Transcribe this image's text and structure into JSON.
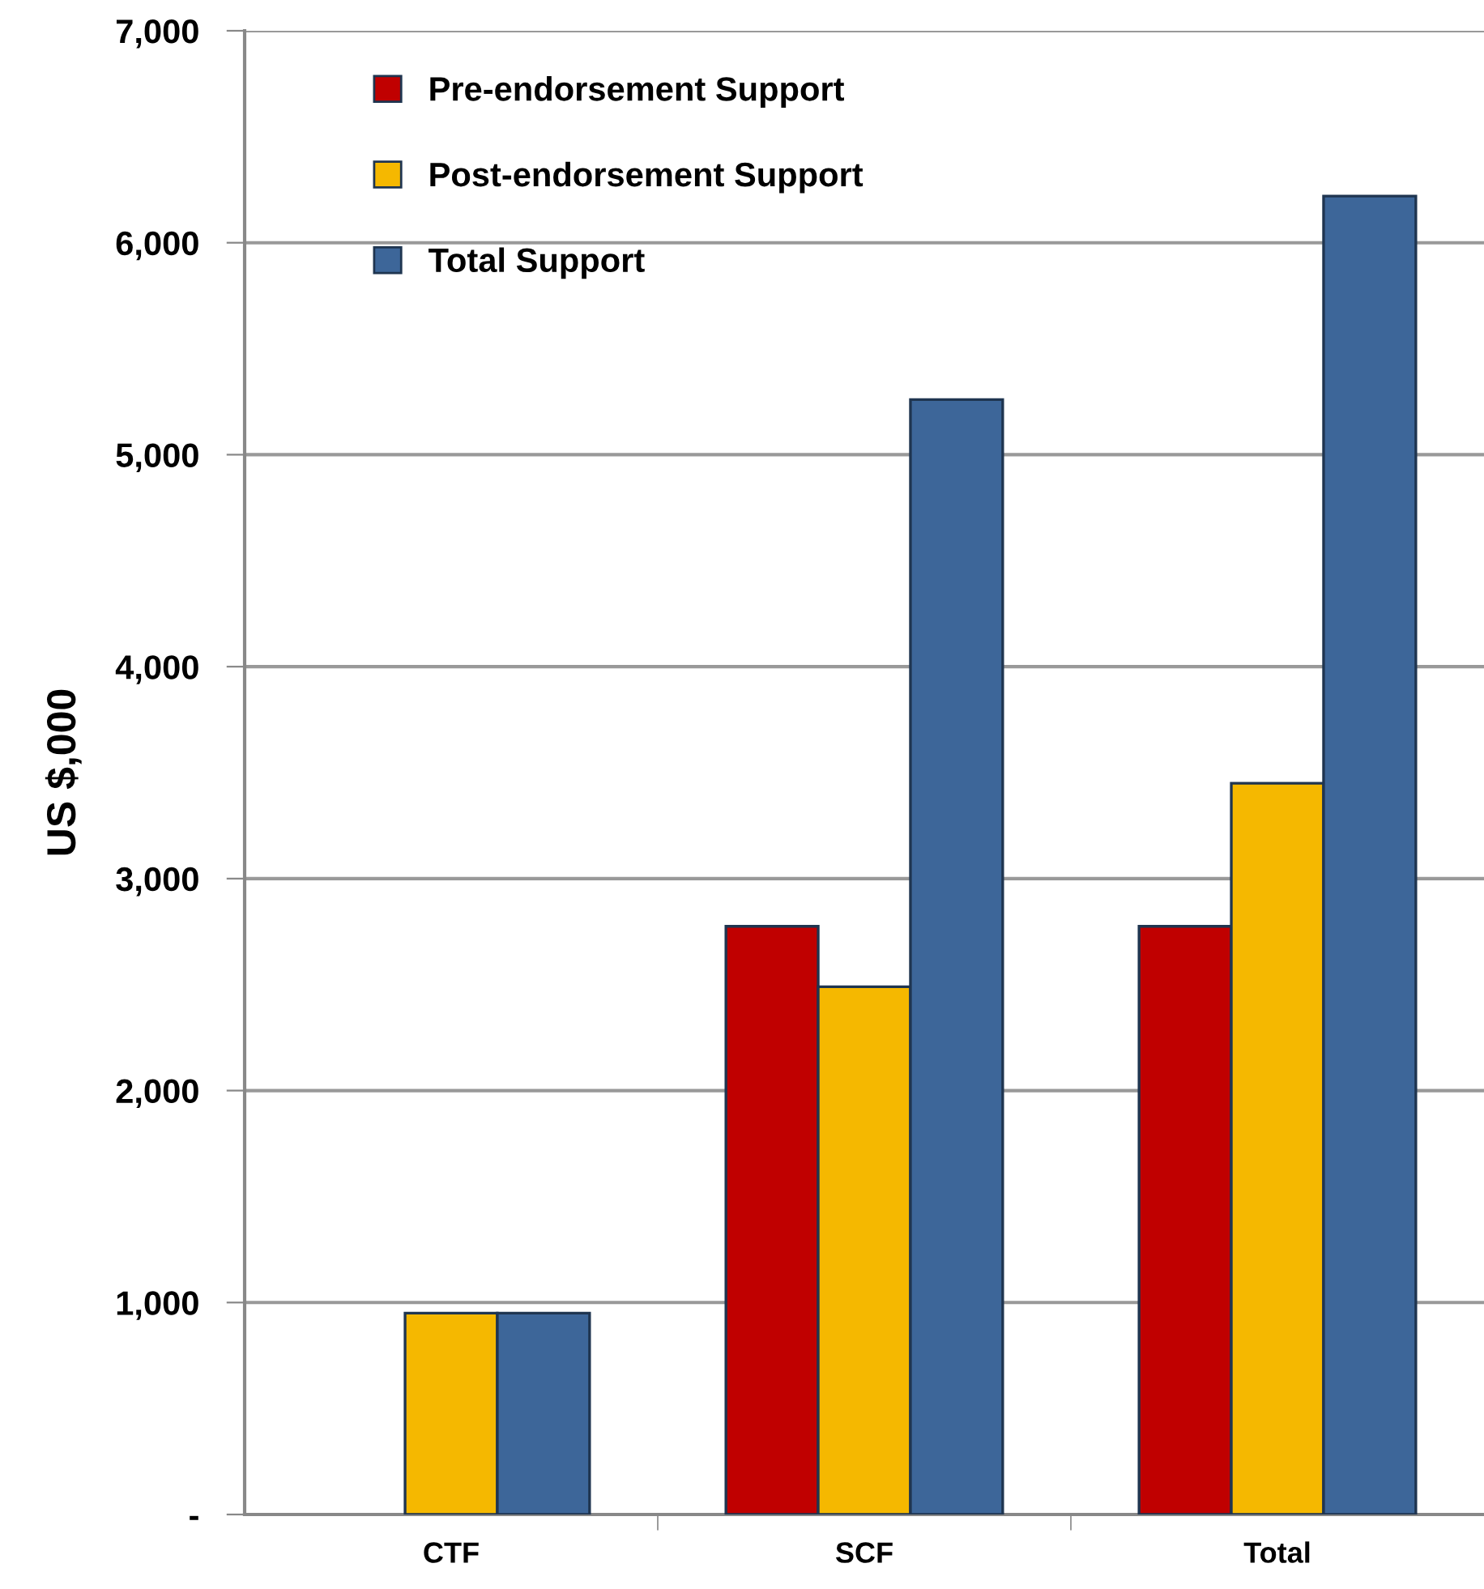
{
  "chart_data": {
    "type": "bar",
    "ylabel": "US $,000",
    "categories": [
      "CTF",
      "SCF",
      "Total"
    ],
    "series": [
      {
        "name": "Pre-endorsement Support",
        "color": "#c00000",
        "values": [
          null,
          2775,
          2775
        ]
      },
      {
        "name": "Post-endorsement Support",
        "color": "#f5b800",
        "values": [
          950,
          2490,
          3450
        ]
      },
      {
        "name": "Total Support",
        "color": "#3d6699",
        "values": [
          950,
          5260,
          6220
        ]
      }
    ],
    "ylim": [
      0,
      7000
    ],
    "yticks": [
      {
        "value": 0,
        "label": "-"
      },
      {
        "value": 1000,
        "label": "1,000"
      },
      {
        "value": 2000,
        "label": "2,000"
      },
      {
        "value": 3000,
        "label": "3,000"
      },
      {
        "value": 4000,
        "label": "4,000"
      },
      {
        "value": 5000,
        "label": "5,000"
      },
      {
        "value": 6000,
        "label": "6,000"
      },
      {
        "value": 7000,
        "label": "7,000"
      }
    ],
    "grid": "y",
    "legend": "top left"
  }
}
